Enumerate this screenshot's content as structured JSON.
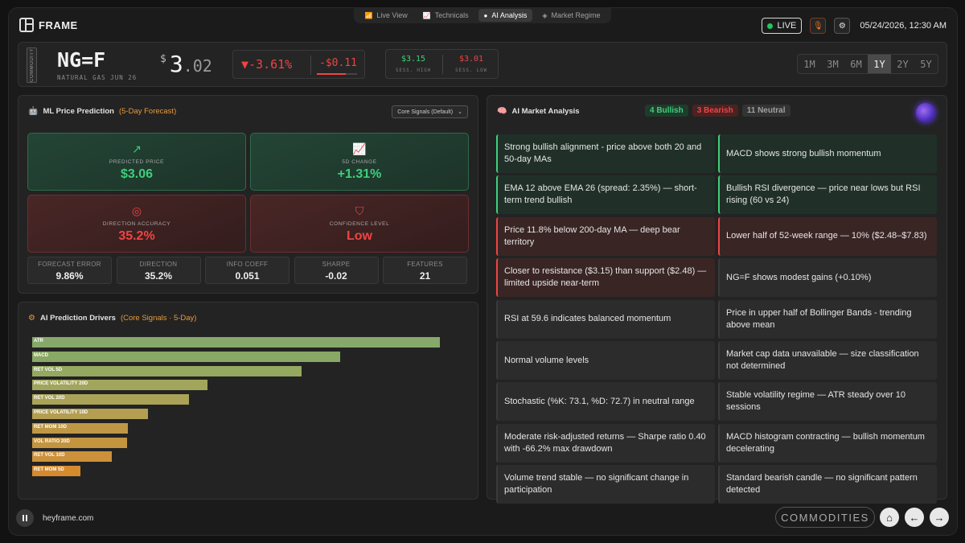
{
  "nav": {
    "tabs": [
      "Live View",
      "Technicals",
      "AI Analysis",
      "Market Regime"
    ],
    "active": 2
  },
  "brand": "FRAME",
  "top_right": {
    "live_label": "LIVE",
    "datetime": "05/24/2026, 12:30 AM",
    "live_color": "#22c55e"
  },
  "ticker": {
    "tag": "COMMODITY",
    "symbol": "NG=F",
    "name": "NATURAL GAS JUN 26",
    "currency": "$",
    "price_int": "3",
    "price_dec": ".02",
    "change_pct": "▼-3.61%",
    "change_abs": "-$0.11",
    "change_fill": 0.72,
    "sess_high": "$3.15",
    "sess_high_label": "SESS. HIGH",
    "sess_low": "$3.01",
    "sess_low_label": "SESS. LOW",
    "ranges": [
      "1M",
      "3M",
      "6M",
      "1Y",
      "2Y",
      "5Y"
    ],
    "active_range": 3
  },
  "prediction": {
    "title": "ML Price Prediction",
    "subtitle": "(5-Day Forecast)",
    "select": "Core Signals (Default)",
    "cards": [
      {
        "label": "PREDICTED PRICE",
        "value": "$3.06",
        "tone": "green",
        "icon": "trend-up-icon"
      },
      {
        "label": "5D CHANGE",
        "value": "+1.31%",
        "tone": "green",
        "icon": "line-chart-icon"
      },
      {
        "label": "DIRECTION ACCURACY",
        "value": "35.2%",
        "tone": "red",
        "icon": "target-icon"
      },
      {
        "label": "CONFIDENCE LEVEL",
        "value": "Low",
        "tone": "red",
        "icon": "shield-icon"
      }
    ],
    "metrics": [
      {
        "label": "FORECAST ERROR",
        "value": "9.86%"
      },
      {
        "label": "DIRECTION",
        "value": "35.2%"
      },
      {
        "label": "INFO COEFF",
        "value": "0.051"
      },
      {
        "label": "SHARPE",
        "value": "-0.02"
      },
      {
        "label": "FEATURES",
        "value": "21"
      }
    ]
  },
  "drivers": {
    "title": "AI Prediction Drivers",
    "subtitle": "(Core Signals · 5-Day)",
    "chart_data": {
      "type": "bar",
      "orientation": "horizontal",
      "categories": [
        "ATR",
        "MACD",
        "RET VOL 5D",
        "PRICE VOLATILITY 20D",
        "RET VOL 20D",
        "PRICE VOLATILITY 10D",
        "RET MOM 10D",
        "VOL RATIO 20D",
        "RET VOL 10D",
        "RET MOM 5D"
      ],
      "values": [
        1.0,
        0.755,
        0.66,
        0.43,
        0.385,
        0.285,
        0.235,
        0.232,
        0.195,
        0.118
      ],
      "colors": [
        "#86a86a",
        "#8aa865",
        "#94a860",
        "#a2a65c",
        "#aaa257",
        "#b39e52",
        "#bf9845",
        "#c4953f",
        "#cc913a",
        "#d68a2e"
      ]
    }
  },
  "analysis": {
    "title": "AI Market Analysis",
    "bullish": "4 Bullish",
    "bearish": "3 Bearish",
    "neutral": "11 Neutral",
    "signals": [
      {
        "text": "Strong bullish alignment - price above both 20 and 50-day MAs",
        "tone": "bull"
      },
      {
        "text": "MACD shows strong bullish momentum",
        "tone": "bull"
      },
      {
        "text": "EMA 12 above EMA 26 (spread: 2.35%) — short-term trend bullish",
        "tone": "bull"
      },
      {
        "text": "Bullish RSI divergence — price near lows but RSI rising (60 vs 24)",
        "tone": "bull"
      },
      {
        "text": "Price 11.8% below 200-day MA — deep bear territory",
        "tone": "bear"
      },
      {
        "text": "Lower half of 52-week range — 10% ($2.48–$7.83)",
        "tone": "bear"
      },
      {
        "text": "Closer to resistance ($3.15) than support ($2.48) — limited upside near-term",
        "tone": "bear"
      },
      {
        "text": "NG=F shows modest gains (+0.10%)",
        "tone": "neu"
      },
      {
        "text": "RSI at 59.6 indicates balanced momentum",
        "tone": "neu"
      },
      {
        "text": "Price in upper half of Bollinger Bands - trending above mean",
        "tone": "neu"
      },
      {
        "text": "Normal volume levels",
        "tone": "neu"
      },
      {
        "text": "Market cap data unavailable — size classification not determined",
        "tone": "neu"
      },
      {
        "text": "Stochastic (%K: 73.1, %D: 72.7) in neutral range",
        "tone": "neu"
      },
      {
        "text": "Stable volatility regime — ATR steady over 10 sessions",
        "tone": "neu"
      },
      {
        "text": "Moderate risk-adjusted returns — Sharpe ratio 0.40 with -66.2% max drawdown",
        "tone": "neu"
      },
      {
        "text": "MACD histogram contracting — bullish momentum decelerating",
        "tone": "neu"
      },
      {
        "text": "Volume trend stable — no significant change in participation",
        "tone": "neu"
      },
      {
        "text": "Standard bearish candle — no significant pattern detected",
        "tone": "neu"
      }
    ]
  },
  "footer": {
    "site": "heyframe.com",
    "category": "COMMODITIES"
  }
}
